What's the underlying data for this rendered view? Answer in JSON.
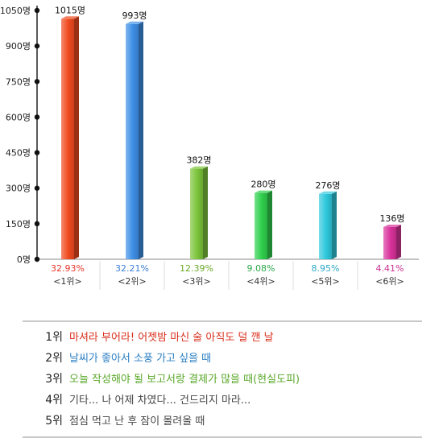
{
  "chart_data": {
    "type": "bar",
    "y_unit": "명",
    "ylim": [
      0,
      1050
    ],
    "y_ticks": [
      "0명",
      "150명",
      "300명",
      "450명",
      "600명",
      "750명",
      "900명",
      "1050명"
    ],
    "y_tick_values": [
      0,
      150,
      300,
      450,
      600,
      750,
      900,
      1050
    ],
    "categories": [
      "<1위>",
      "<2위>",
      "<3위>",
      "<4위>",
      "<5위>",
      "<6위>"
    ],
    "values": [
      1015,
      993,
      382,
      280,
      276,
      136
    ],
    "value_labels": [
      "1015명",
      "993명",
      "382명",
      "280명",
      "276명",
      "136명"
    ],
    "percent_labels": [
      "32.93%",
      "32.21%",
      "12.39%",
      "9.08%",
      "8.95%",
      "4.41%"
    ],
    "colors": [
      "#f04a1e",
      "#3d8fe6",
      "#7cc43a",
      "#2fcf4c",
      "#2ec8dc",
      "#d8329a"
    ],
    "percent_colors": [
      "#e8352a",
      "#3b7fd6",
      "#6aaa2a",
      "#2aa84a",
      "#2aa8c8",
      "#cc3090"
    ]
  },
  "legend": [
    {
      "rank": "1위",
      "text": "마셔라 부어라! 어젯밤 마신 술 아직도 덜 깬 날",
      "color": "#d8301c"
    },
    {
      "rank": "2위",
      "text": "날씨가 좋아서 소풍 가고 싶을 때",
      "color": "#2b7fc4"
    },
    {
      "rank": "3위",
      "text": "오늘 작성해야 될 보고서랑 결제가 많을 때(현실도피)",
      "color": "#5aa82a"
    },
    {
      "rank": "4위",
      "text": "기타... 나 어제 차였다... 건드리지 마라...",
      "color": "#444444"
    },
    {
      "rank": "5위",
      "text": "점심 먹고 난 후 잠이 몰려올 때",
      "color": "#444444"
    }
  ]
}
